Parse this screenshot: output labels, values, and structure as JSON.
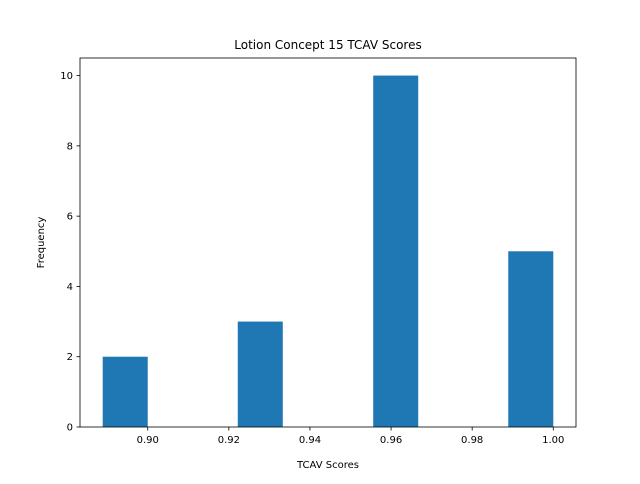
{
  "chart_data": {
    "type": "bar",
    "title": "Lotion Concept 15 TCAV Scores",
    "xlabel": "TCAV Scores",
    "ylabel": "Frequency",
    "bins": [
      {
        "x0": 0.8889,
        "x1": 0.9,
        "count": 2
      },
      {
        "x0": 0.9,
        "x1": 0.9111,
        "count": 0
      },
      {
        "x0": 0.9111,
        "x1": 0.9222,
        "count": 0
      },
      {
        "x0": 0.9222,
        "x1": 0.9333,
        "count": 3
      },
      {
        "x0": 0.9333,
        "x1": 0.9444,
        "count": 0
      },
      {
        "x0": 0.9444,
        "x1": 0.9556,
        "count": 0
      },
      {
        "x0": 0.9556,
        "x1": 0.9667,
        "count": 10
      },
      {
        "x0": 0.9667,
        "x1": 0.9778,
        "count": 0
      },
      {
        "x0": 0.9778,
        "x1": 0.9889,
        "count": 0
      },
      {
        "x0": 0.9889,
        "x1": 1.0,
        "count": 5
      }
    ],
    "xlim": [
      0.8833,
      1.0056
    ],
    "ylim": [
      0,
      10.5
    ],
    "xticks": [
      "0.90",
      "0.92",
      "0.94",
      "0.96",
      "0.98",
      "1.00"
    ],
    "yticks": [
      "0",
      "2",
      "4",
      "6",
      "8",
      "10"
    ],
    "bar_color": "#1f77b4",
    "grid": false
  }
}
